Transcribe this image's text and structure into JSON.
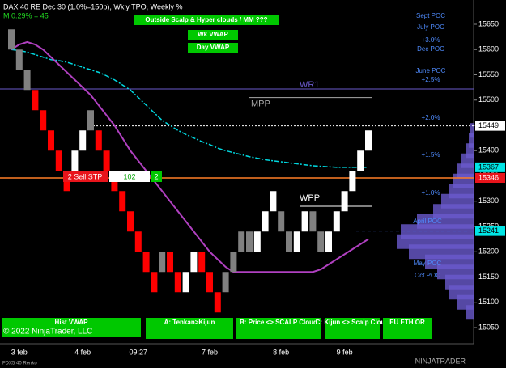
{
  "chart_data": {
    "type": "renko",
    "title": "DAX 40 RE Dec 30 (1.0%=150p), Wkly TPO, Weekly %",
    "subtitle": "M 0.29% = 45",
    "ylim": [
      15018,
      15698
    ],
    "yticks": [
      15050,
      15100,
      15150,
      15200,
      15250,
      15300,
      15350,
      15400,
      15450,
      15500,
      15550,
      15600,
      15650
    ],
    "colors": {
      "up": "#ffffff",
      "down": "#ff0000",
      "ghost": "#808080"
    },
    "x": [
      null,
      "3 feb",
      null,
      null,
      null,
      null,
      null,
      null,
      null,
      "4 feb",
      null,
      null,
      null,
      null,
      null,
      null,
      "09:27",
      null,
      null,
      null,
      null,
      null,
      null,
      null,
      null,
      "7 feb",
      null,
      null,
      null,
      null,
      null,
      null,
      null,
      null,
      "8 feb",
      null,
      null,
      null,
      null,
      null,
      null,
      null,
      "9 feb",
      null,
      null,
      null
    ],
    "bricks": [
      {
        "o": 15640,
        "c": 15600,
        "k": "ghost"
      },
      {
        "o": 15600,
        "c": 15560,
        "k": "ghost"
      },
      {
        "o": 15560,
        "c": 15520,
        "k": "ghost"
      },
      {
        "o": 15520,
        "c": 15480,
        "k": "down"
      },
      {
        "o": 15480,
        "c": 15440,
        "k": "down"
      },
      {
        "o": 15440,
        "c": 15400,
        "k": "down"
      },
      {
        "o": 15400,
        "c": 15360,
        "k": "down"
      },
      {
        "o": 15360,
        "c": 15320,
        "k": "down"
      },
      {
        "o": 15360,
        "c": 15400,
        "k": "up"
      },
      {
        "o": 15400,
        "c": 15440,
        "k": "up"
      },
      {
        "o": 15440,
        "c": 15480,
        "k": "ghost"
      },
      {
        "o": 15440,
        "c": 15400,
        "k": "down"
      },
      {
        "o": 15400,
        "c": 15360,
        "k": "down"
      },
      {
        "o": 15360,
        "c": 15320,
        "k": "down"
      },
      {
        "o": 15320,
        "c": 15280,
        "k": "down"
      },
      {
        "o": 15280,
        "c": 15240,
        "k": "down"
      },
      {
        "o": 15240,
        "c": 15200,
        "k": "down"
      },
      {
        "o": 15200,
        "c": 15160,
        "k": "down"
      },
      {
        "o": 15160,
        "c": 15120,
        "k": "down"
      },
      {
        "o": 15160,
        "c": 15200,
        "k": "ghost"
      },
      {
        "o": 15200,
        "c": 15160,
        "k": "down"
      },
      {
        "o": 15160,
        "c": 15120,
        "k": "down"
      },
      {
        "o": 15120,
        "c": 15160,
        "k": "up"
      },
      {
        "o": 15160,
        "c": 15200,
        "k": "up"
      },
      {
        "o": 15200,
        "c": 15160,
        "k": "down"
      },
      {
        "o": 15160,
        "c": 15120,
        "k": "down"
      },
      {
        "o": 15120,
        "c": 15080,
        "k": "down"
      },
      {
        "o": 15120,
        "c": 15160,
        "k": "ghost"
      },
      {
        "o": 15160,
        "c": 15200,
        "k": "ghost"
      },
      {
        "o": 15200,
        "c": 15240,
        "k": "ghost"
      },
      {
        "o": 15240,
        "c": 15200,
        "k": "ghost"
      },
      {
        "o": 15200,
        "c": 15240,
        "k": "up"
      },
      {
        "o": 15240,
        "c": 15280,
        "k": "up"
      },
      {
        "o": 15280,
        "c": 15320,
        "k": "up"
      },
      {
        "o": 15280,
        "c": 15240,
        "k": "ghost"
      },
      {
        "o": 15240,
        "c": 15200,
        "k": "ghost"
      },
      {
        "o": 15200,
        "c": 15240,
        "k": "up"
      },
      {
        "o": 15240,
        "c": 15280,
        "k": "up"
      },
      {
        "o": 15280,
        "c": 15240,
        "k": "ghost"
      },
      {
        "o": 15240,
        "c": 15200,
        "k": "ghost"
      },
      {
        "o": 15200,
        "c": 15240,
        "k": "up"
      },
      {
        "o": 15240,
        "c": 15280,
        "k": "up"
      },
      {
        "o": 15280,
        "c": 15320,
        "k": "up"
      },
      {
        "o": 15320,
        "c": 15360,
        "k": "up"
      },
      {
        "o": 15360,
        "c": 15400,
        "k": "up"
      },
      {
        "o": 15400,
        "c": 15440,
        "k": "up"
      }
    ],
    "lines": [
      {
        "color": "#00d8e0",
        "dash": true,
        "values": [
          15600,
          15598,
          15595,
          15590,
          15585,
          15580,
          15578,
          15575,
          15570,
          15565,
          15560,
          15555,
          15548,
          15540,
          15530,
          15520,
          15505,
          15490,
          15475,
          15460,
          15450,
          15440,
          15432,
          15425,
          15418,
          15412,
          15405,
          15400,
          15396,
          15392,
          15388,
          15385,
          15382,
          15380,
          15378,
          15376,
          15374,
          15372,
          15370,
          15369,
          15368,
          15367,
          15367,
          15367,
          15367,
          15367
        ]
      },
      {
        "color": "#b040c0",
        "dash": false,
        "values": [
          15600,
          15610,
          15615,
          15610,
          15600,
          15585,
          15570,
          15555,
          15540,
          15525,
          15510,
          15490,
          15470,
          15450,
          15425,
          15400,
          15380,
          15360,
          15340,
          15320,
          15300,
          15280,
          15260,
          15240,
          15220,
          15200,
          15185,
          15170,
          15160,
          15160,
          15160,
          15160,
          15160,
          15160,
          15160,
          15160,
          15160,
          15160,
          15160,
          15165,
          15175,
          15185,
          15195,
          15205,
          15215,
          15225
        ]
      }
    ],
    "levels": [
      {
        "name": "WR1",
        "value": 15522,
        "color": "#6a5acd"
      },
      {
        "name": "MPP",
        "value": 15505,
        "color": "#aaaaaa"
      },
      {
        "value": 15449,
        "color": "#ffffff"
      },
      {
        "value": 15346,
        "color": "#ff7f27"
      },
      {
        "value": 15241,
        "color": "#4169e1"
      },
      {
        "name": "WPP",
        "value": 15290,
        "color": "#ffffff"
      }
    ],
    "price_tags": [
      {
        "value": 15449,
        "color": "#ffffff"
      },
      {
        "value": 15367,
        "color": "#00e5e5"
      },
      {
        "value": 15346,
        "color": "#e8141b"
      },
      {
        "value": 15241,
        "color": "#00e5e5"
      }
    ],
    "profile": {
      "color": "#6a5acd",
      "prices": [
        15080,
        15100,
        15120,
        15140,
        15160,
        15180,
        15200,
        15220,
        15240,
        15260,
        15280,
        15300,
        15320,
        15340,
        15360,
        15380,
        15400,
        15420,
        15440
      ],
      "values": [
        10,
        20,
        30,
        35,
        45,
        60,
        80,
        95,
        90,
        70,
        50,
        40,
        30,
        25,
        20,
        15,
        10,
        6,
        4
      ]
    },
    "poc_labels": [
      "Sept POC",
      "July POC",
      "+3.0%",
      "Dec POC",
      "June POC",
      "+2.5%",
      "+2.0%",
      "+1.5%",
      "+1.0%",
      "April POC",
      "May POC",
      "Oct POC"
    ],
    "order": {
      "label": "2 Sell STP",
      "offset": 102,
      "qty": 2
    },
    "buttons_top": [
      "Outside Scalp & Hyper clouds / MM ???",
      "Wk VWAP",
      "Day VWAP"
    ],
    "buttons_bottom": [
      "Hist VWAP",
      "A: Tenkan>Kijun",
      "B: Price <> SCALP Cloud",
      "C: Kijun <> Scalp Cloud",
      "EU ETH OR"
    ],
    "copyright": "© 2022 NinjaTrader, LLC",
    "footer": "FDX5 40 Renko",
    "brand": "NINJATRADER"
  }
}
